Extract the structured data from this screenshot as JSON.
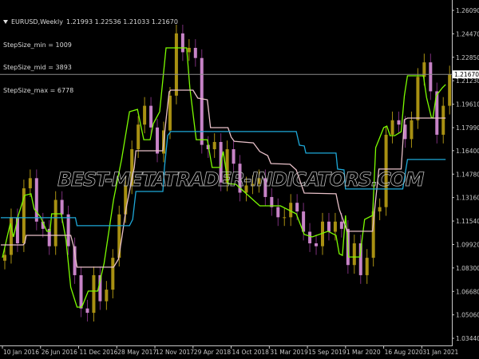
{
  "header": {
    "symbol": "EURUSD,Weekly",
    "ohlc": "1.21993 1.22536 1.21033 1.21670",
    "params": [
      "StepSize_min = 1009",
      "StepSize_mid = 3893",
      "StepSize_max = 6778"
    ]
  },
  "watermark": "BEST-METATRADER-INDICATORS.COM",
  "chart_data": {
    "type": "candlestick",
    "title": "EURUSD,Weekly",
    "current_price": 1.2167,
    "current_price_label": "1.21670",
    "y_ticks": [
      "1.26090",
      "1.24470",
      "1.22850",
      "1.21230",
      "1.19610",
      "1.17990",
      "1.16400",
      "1.14780",
      "1.13160",
      "1.11540",
      "1.09920",
      "1.08300",
      "1.06680",
      "1.05060",
      "1.03440"
    ],
    "x_ticks": [
      "10 Jan 2016",
      "26 Jun 2016",
      "11 Dec 2016",
      "28 May 2017",
      "12 Nov 2017",
      "29 Apr 2018",
      "14 Oct 2018",
      "31 Mar 2019",
      "15 Sep 2019",
      "1 Mar 2020",
      "16 Aug 2020",
      "31 Jan 2021"
    ],
    "x_tick_dates": [
      "2016-01-10",
      "2016-06-26",
      "2016-12-11",
      "2017-05-28",
      "2017-11-12",
      "2018-04-29",
      "2018-10-14",
      "2019-03-31",
      "2019-09-15",
      "2020-03-01",
      "2020-08-16",
      "2021-01-31"
    ],
    "ylim": [
      1.03,
      1.268
    ],
    "grid": false,
    "colors": {
      "background": "#000000",
      "bull": "#a89012",
      "bear": "#c783c7",
      "fast": "#7cfc00",
      "mid": "#e8c0c8",
      "slow": "#1ea8d8",
      "axis": "#c8c8c8",
      "price_line": "#8a8a8a"
    },
    "candles": [
      [
        "2016-01-10",
        1.092
      ],
      [
        "2016-02-07",
        1.118
      ],
      [
        "2016-03-06",
        1.1
      ],
      [
        "2016-04-03",
        1.138
      ],
      [
        "2016-05-01",
        1.145
      ],
      [
        "2016-05-29",
        1.115
      ],
      [
        "2016-06-26",
        1.11
      ],
      [
        "2016-07-24",
        1.098
      ],
      [
        "2016-08-21",
        1.13
      ],
      [
        "2016-09-18",
        1.12
      ],
      [
        "2016-10-16",
        1.098
      ],
      [
        "2016-11-13",
        1.078
      ],
      [
        "2016-12-11",
        1.055
      ],
      [
        "2017-01-08",
        1.052
      ],
      [
        "2017-02-05",
        1.078
      ],
      [
        "2017-03-05",
        1.06
      ],
      [
        "2017-04-02",
        1.068
      ],
      [
        "2017-04-30",
        1.09
      ],
      [
        "2017-05-28",
        1.12
      ],
      [
        "2017-06-25",
        1.14
      ],
      [
        "2017-07-23",
        1.165
      ],
      [
        "2017-08-20",
        1.182
      ],
      [
        "2017-09-17",
        1.195
      ],
      [
        "2017-10-15",
        1.18
      ],
      [
        "2017-11-12",
        1.162
      ],
      [
        "2017-12-10",
        1.178
      ],
      [
        "2018-01-07",
        1.202
      ],
      [
        "2018-02-04",
        1.245
      ],
      [
        "2018-03-04",
        1.232
      ],
      [
        "2018-04-01",
        1.235
      ],
      [
        "2018-04-29",
        1.228
      ],
      [
        "2018-05-27",
        1.168
      ],
      [
        "2018-06-24",
        1.165
      ],
      [
        "2018-07-22",
        1.17
      ],
      [
        "2018-08-19",
        1.142
      ],
      [
        "2018-09-16",
        1.165
      ],
      [
        "2018-10-14",
        1.155
      ],
      [
        "2018-11-11",
        1.135
      ],
      [
        "2018-12-09",
        1.14
      ],
      [
        "2019-01-06",
        1.141
      ],
      [
        "2019-02-03",
        1.145
      ],
      [
        "2019-03-03",
        1.132
      ],
      [
        "2019-03-31",
        1.125
      ],
      [
        "2019-04-28",
        1.118
      ],
      [
        "2019-05-26",
        1.118
      ],
      [
        "2019-06-23",
        1.128
      ],
      [
        "2019-07-21",
        1.122
      ],
      [
        "2019-08-18",
        1.108
      ],
      [
        "2019-09-15",
        1.1
      ],
      [
        "2019-10-13",
        1.098
      ],
      [
        "2019-11-10",
        1.115
      ],
      [
        "2019-12-08",
        1.108
      ],
      [
        "2020-01-05",
        1.115
      ],
      [
        "2020-02-02",
        1.11
      ],
      [
        "2020-03-01",
        1.085
      ],
      [
        "2020-03-29",
        1.1
      ],
      [
        "2020-04-26",
        1.078
      ],
      [
        "2020-05-24",
        1.09
      ],
      [
        "2020-06-21",
        1.122
      ],
      [
        "2020-07-19",
        1.125
      ],
      [
        "2020-08-16",
        1.175
      ],
      [
        "2020-09-13",
        1.185
      ],
      [
        "2020-10-11",
        1.182
      ],
      [
        "2020-11-08",
        1.172
      ],
      [
        "2020-12-06",
        1.185
      ],
      [
        "2021-01-03",
        1.215
      ],
      [
        "2021-01-31",
        1.225
      ],
      [
        "2021-02-28",
        1.205
      ],
      [
        "2021-03-28",
        1.175
      ],
      [
        "2021-04-25",
        1.195
      ],
      [
        "2021-05-23",
        1.2167
      ]
    ],
    "series": [
      {
        "key": "fast",
        "points": [
          [
            "2016-01-10",
            1.0901
          ],
          [
            "2016-02-14",
            1.1138
          ],
          [
            "2016-02-28",
            1.1044
          ],
          [
            "2016-03-20",
            1.1193
          ],
          [
            "2016-04-17",
            1.1331
          ],
          [
            "2016-05-15",
            1.1342
          ],
          [
            "2016-05-29",
            1.1237
          ],
          [
            "2016-06-26",
            1.1182
          ],
          [
            "2016-07-24",
            1.1083
          ],
          [
            "2016-08-07",
            1.1083
          ],
          [
            "2016-08-14",
            1.1204
          ],
          [
            "2016-09-25",
            1.1204
          ],
          [
            "2016-10-16",
            1.1028
          ],
          [
            "2016-11-06",
            1.0697
          ],
          [
            "2016-12-04",
            1.0559
          ],
          [
            "2016-12-25",
            1.0559
          ],
          [
            "2017-01-22",
            1.067
          ],
          [
            "2017-03-05",
            1.067
          ],
          [
            "2017-04-02",
            1.0862
          ],
          [
            "2017-05-14",
            1.1303
          ],
          [
            "2017-06-18",
            1.1579
          ],
          [
            "2017-07-23",
            1.1909
          ],
          [
            "2017-08-27",
            1.1925
          ],
          [
            "2017-09-24",
            1.1716
          ],
          [
            "2017-10-22",
            1.1716
          ],
          [
            "2017-11-05",
            1.1827
          ],
          [
            "2017-12-03",
            1.1909
          ],
          [
            "2017-12-31",
            1.235
          ],
          [
            "2018-04-01",
            1.235
          ],
          [
            "2018-04-15",
            1.2075
          ],
          [
            "2018-05-13",
            1.1716
          ],
          [
            "2018-07-01",
            1.1716
          ],
          [
            "2018-07-22",
            1.1524
          ],
          [
            "2018-08-26",
            1.1524
          ],
          [
            "2018-09-09",
            1.1634
          ],
          [
            "2018-09-30",
            1.1413
          ],
          [
            "2018-11-04",
            1.1408
          ],
          [
            "2019-02-17",
            1.1259
          ],
          [
            "2019-05-19",
            1.1259
          ],
          [
            "2019-07-28",
            1.1204
          ],
          [
            "2019-09-01",
            1.1061
          ],
          [
            "2019-10-06",
            1.1044
          ],
          [
            "2019-12-15",
            1.1083
          ],
          [
            "2020-01-19",
            1.1055
          ],
          [
            "2020-02-02",
            1.0928
          ],
          [
            "2020-02-16",
            1.0917
          ],
          [
            "2020-03-01",
            1.1193
          ],
          [
            "2020-03-15",
            1.0906
          ],
          [
            "2020-05-03",
            1.0906
          ],
          [
            "2020-05-24",
            1.1165
          ],
          [
            "2020-06-28",
            1.1193
          ],
          [
            "2020-07-12",
            1.1661
          ],
          [
            "2020-07-26",
            1.1716
          ],
          [
            "2020-08-16",
            1.1799
          ],
          [
            "2020-08-30",
            1.181
          ],
          [
            "2020-09-13",
            1.1744
          ],
          [
            "2020-10-04",
            1.1744
          ],
          [
            "2020-11-01",
            1.1771
          ],
          [
            "2020-11-15",
            1.2019
          ],
          [
            "2020-11-29",
            1.2157
          ],
          [
            "2021-02-07",
            1.2157
          ],
          [
            "2021-02-21",
            1.2008
          ],
          [
            "2021-03-14",
            1.187
          ],
          [
            "2021-03-21",
            1.1865
          ],
          [
            "2021-04-04",
            1.2019
          ],
          [
            "2021-05-02",
            1.2075
          ],
          [
            "2021-05-16",
            1.2097
          ]
        ]
      },
      {
        "key": "mid",
        "points": [
          [
            "2016-01-03",
            1.0989
          ],
          [
            "2016-04-10",
            1.0989
          ],
          [
            "2016-04-17",
            1.1
          ],
          [
            "2016-04-24",
            1.1055
          ],
          [
            "2016-11-06",
            1.1055
          ],
          [
            "2016-11-20",
            1.0973
          ],
          [
            "2016-12-04",
            1.0835
          ],
          [
            "2017-05-14",
            1.0835
          ],
          [
            "2017-06-04",
            1.089
          ],
          [
            "2017-06-18",
            1.1028
          ],
          [
            "2017-07-09",
            1.1248
          ],
          [
            "2017-08-13",
            1.1524
          ],
          [
            "2017-08-20",
            1.1639
          ],
          [
            "2017-12-17",
            1.1639
          ],
          [
            "2017-12-31",
            1.1854
          ],
          [
            "2018-01-14",
            1.2047
          ],
          [
            "2018-01-21",
            1.2058
          ],
          [
            "2018-04-29",
            1.2058
          ],
          [
            "2018-05-20",
            1.2003
          ],
          [
            "2018-07-01",
            1.1992
          ],
          [
            "2018-07-15",
            1.1799
          ],
          [
            "2018-09-30",
            1.1799
          ],
          [
            "2018-10-14",
            1.1733
          ],
          [
            "2018-10-28",
            1.1705
          ],
          [
            "2019-01-20",
            1.1694
          ],
          [
            "2019-02-17",
            1.1634
          ],
          [
            "2019-03-24",
            1.1606
          ],
          [
            "2019-04-07",
            1.1551
          ],
          [
            "2019-06-30",
            1.1546
          ],
          [
            "2019-07-28",
            1.1507
          ],
          [
            "2019-09-01",
            1.1347
          ],
          [
            "2020-01-19",
            1.1342
          ],
          [
            "2020-02-02",
            1.1237
          ],
          [
            "2020-03-08",
            1.1083
          ],
          [
            "2020-06-28",
            1.1083
          ],
          [
            "2020-07-12",
            1.1303
          ],
          [
            "2020-07-26",
            1.1513
          ],
          [
            "2020-11-01",
            1.1513
          ],
          [
            "2020-11-15",
            1.1854
          ],
          [
            "2020-11-29",
            1.1865
          ],
          [
            "2021-05-16",
            1.1865
          ]
        ]
      },
      {
        "key": "slow",
        "points": [
          [
            "2016-01-03",
            1.1177
          ],
          [
            "2016-11-27",
            1.1177
          ],
          [
            "2016-12-04",
            1.1122
          ],
          [
            "2017-07-23",
            1.1122
          ],
          [
            "2017-08-06",
            1.1165
          ],
          [
            "2017-08-20",
            1.1358
          ],
          [
            "2017-12-17",
            1.1358
          ],
          [
            "2017-12-24",
            1.1524
          ],
          [
            "2018-01-07",
            1.1744
          ],
          [
            "2018-01-21",
            1.1772
          ],
          [
            "2019-07-28",
            1.1772
          ],
          [
            "2019-08-11",
            1.1678
          ],
          [
            "2019-09-01",
            1.1673
          ],
          [
            "2019-09-08",
            1.1623
          ],
          [
            "2020-01-19",
            1.1623
          ],
          [
            "2020-01-26",
            1.1513
          ],
          [
            "2020-02-23",
            1.1507
          ],
          [
            "2020-03-01",
            1.1375
          ],
          [
            "2020-11-08",
            1.1375
          ],
          [
            "2020-11-29",
            1.1579
          ],
          [
            "2021-05-16",
            1.1579
          ]
        ]
      }
    ]
  }
}
